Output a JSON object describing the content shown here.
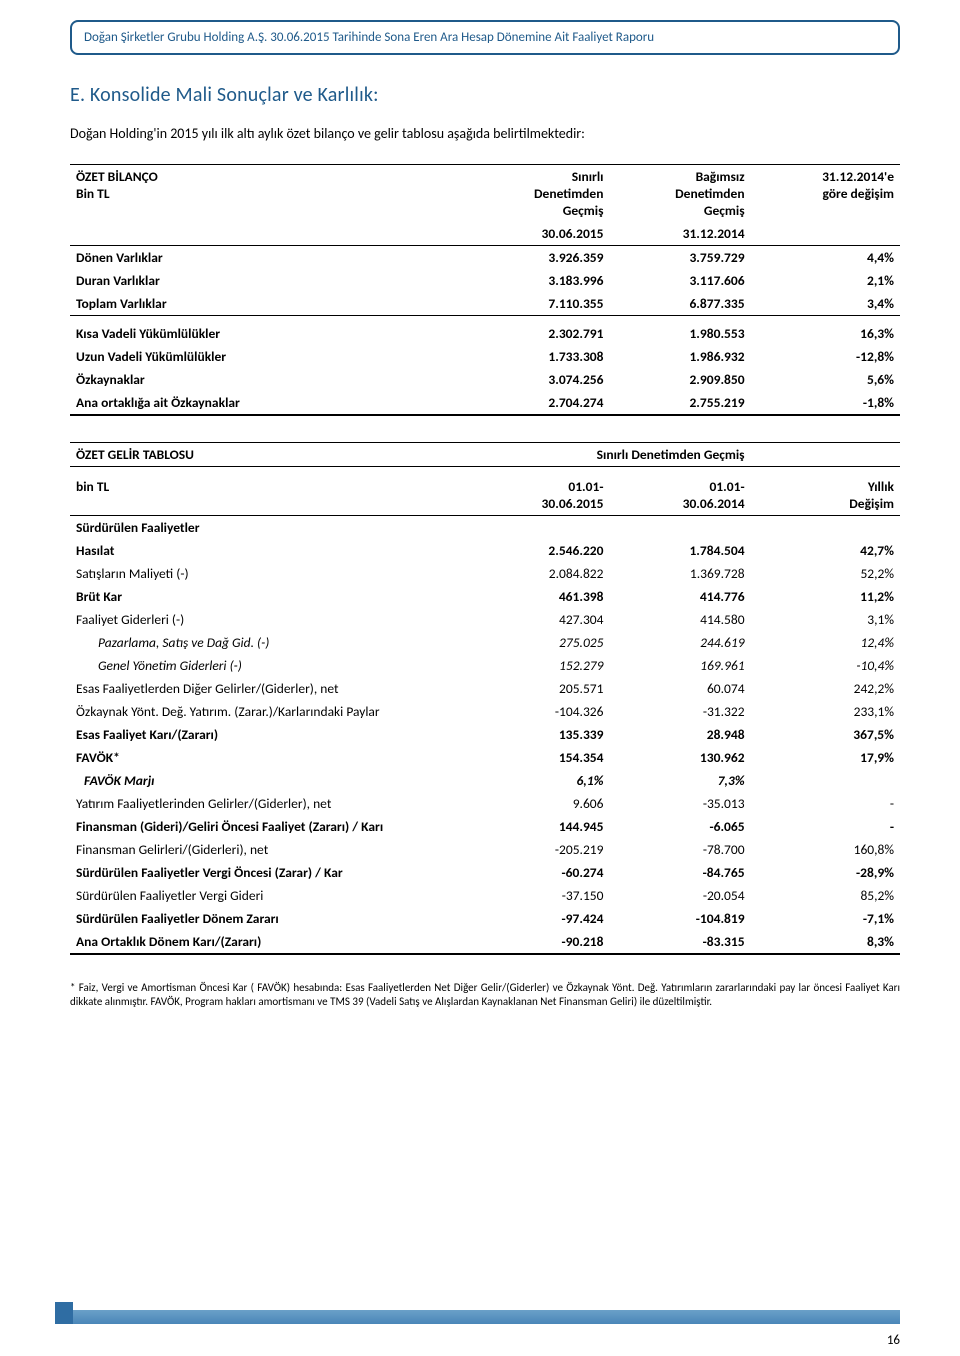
{
  "header": {
    "text": "Doğan Şirketler Grubu Holding A.Ş. 30.06.2015 Tarihinde Sona Eren Ara Hesap Dönemine Ait Faaliyet Raporu",
    "border_color": "#1f5a8a",
    "text_color": "#1f5a8a"
  },
  "section": {
    "title": "E. Konsolide Mali Sonuçlar ve Karlılık:",
    "intro": "Doğan Holding'in 2015 yılı ilk altı aylık özet bilanço ve gelir tablosu aşağıda belirtilmektedir:"
  },
  "balance_table": {
    "columns": {
      "label": "ÖZET BİLANÇO",
      "sublabel": "Bin TL",
      "col2_l1": "Sınırlı",
      "col2_l2": "Denetimden",
      "col2_l3": "Geçmiş",
      "col3_l1": "Bağımsız",
      "col3_l2": "Denetimden",
      "col3_l3": "Geçmiş",
      "col4_l1": "31.12.2014'e",
      "col4_l2": "göre değişim",
      "date_col2": "30.06.2015",
      "date_col3": "31.12.2014"
    },
    "rows": [
      {
        "label": "Dönen Varlıklar",
        "v1": "3.926.359",
        "v2": "3.759.729",
        "chg": "4,4%",
        "bold": true
      },
      {
        "label": "Duran Varlıklar",
        "v1": "3.183.996",
        "v2": "3.117.606",
        "chg": "2,1%",
        "bold": true
      },
      {
        "label": "Toplam Varlıklar",
        "v1": "7.110.355",
        "v2": "6.877.335",
        "chg": "3,4%",
        "bold": true
      },
      {
        "label": "Kısa Vadeli Yükümlülükler",
        "v1": "2.302.791",
        "v2": "1.980.553",
        "chg": "16,3%",
        "bold": true,
        "gap_above": true
      },
      {
        "label": "Uzun Vadeli Yükümlülükler",
        "v1": "1.733.308",
        "v2": "1.986.932",
        "chg": "-12,8%",
        "bold": true
      },
      {
        "label": "Özkaynaklar",
        "v1": "3.074.256",
        "v2": "2.909.850",
        "chg": "5,6%",
        "bold": true
      },
      {
        "label": "Ana ortaklığa ait Özkaynaklar",
        "v1": "2.704.274",
        "v2": "2.755.219",
        "chg": "-1,8%",
        "bold": true
      }
    ]
  },
  "income_table": {
    "header": {
      "label": "ÖZET GELİR TABLOSU",
      "right": "Sınırlı Denetimden Geçmiş"
    },
    "sub_header": {
      "label": "bin TL",
      "col2_l1": "01.01-",
      "col2_l2": "30.06.2015",
      "col3_l1": "01.01-",
      "col3_l2": "30.06.2014",
      "col4_l1": "Yıllık",
      "col4_l2": "Değişim"
    },
    "rows": [
      {
        "label": "Sürdürülen Faaliyetler",
        "v1": "",
        "v2": "",
        "chg": "",
        "bold": true
      },
      {
        "label": "Hasılat",
        "v1": "2.546.220",
        "v2": "1.784.504",
        "chg": "42,7%",
        "bold": true
      },
      {
        "label": "Satışların Maliyeti (-)",
        "v1": "2.084.822",
        "v2": "1.369.728",
        "chg": "52,2%",
        "bold": false
      },
      {
        "label": "Brüt Kar",
        "v1": "461.398",
        "v2": "414.776",
        "chg": "11,2%",
        "bold": true
      },
      {
        "label": "Faaliyet Giderleri (-)",
        "v1": "427.304",
        "v2": "414.580",
        "chg": "3,1%",
        "bold": false
      },
      {
        "label": "Pazarlama, Satış ve Dağ Gid. (-)",
        "v1": "275.025",
        "v2": "244.619",
        "chg": "12,4%",
        "bold": false,
        "italic": true,
        "indent": 1
      },
      {
        "label": "Genel Yönetim Giderleri (-)",
        "v1": "152.279",
        "v2": "169.961",
        "chg": "-10,4%",
        "bold": false,
        "italic": true,
        "indent": 1
      },
      {
        "label": "Esas Faaliyetlerden Diğer Gelirler/(Giderler), net",
        "v1": "205.571",
        "v2": "60.074",
        "chg": "242,2%",
        "bold": false
      },
      {
        "label": "Özkaynak Yönt. Değ. Yatırım. (Zarar.)/Karlarındaki Paylar",
        "v1": "-104.326",
        "v2": "-31.322",
        "chg": "233,1%",
        "bold": false
      },
      {
        "label": "Esas Faaliyet Karı/(Zararı)",
        "v1": "135.339",
        "v2": "28.948",
        "chg": "367,5%",
        "bold": true
      },
      {
        "label": "FAVÖK*",
        "v1": "154.354",
        "v2": "130.962",
        "chg": "17,9%",
        "bold": true
      },
      {
        "label": "FAVÖK Marjı",
        "v1": "6,1%",
        "v2": "7,3%",
        "chg": "",
        "bold": true,
        "italic": true,
        "indent": 2
      },
      {
        "label": "Yatırım Faaliyetlerinden Gelirler/(Giderler), net",
        "v1": "9.606",
        "v2": "-35.013",
        "chg": "-",
        "bold": false
      },
      {
        "label": "Finansman (Gideri)/Geliri Öncesi Faaliyet (Zararı) / Karı",
        "v1": "144.945",
        "v2": "-6.065",
        "chg": "-",
        "bold": true
      },
      {
        "label": "Finansman Gelirleri/(Giderleri), net",
        "v1": "-205.219",
        "v2": "-78.700",
        "chg": "160,8%",
        "bold": false
      },
      {
        "label": "Sürdürülen Faaliyetler Vergi Öncesi (Zarar) / Kar",
        "v1": "-60.274",
        "v2": "-84.765",
        "chg": "-28,9%",
        "bold": true
      },
      {
        "label": "Sürdürülen Faaliyetler Vergi Gideri",
        "v1": "-37.150",
        "v2": "-20.054",
        "chg": "85,2%",
        "bold": false
      },
      {
        "label": "Sürdürülen Faaliyetler Dönem Zararı",
        "v1": "-97.424",
        "v2": "-104.819",
        "chg": "-7,1%",
        "bold": true
      },
      {
        "label": "Ana Ortaklık Dönem Karı/(Zararı)",
        "v1": "-90.218",
        "v2": "-83.315",
        "chg": "8,3%",
        "bold": true
      }
    ]
  },
  "footnote": "* Faiz, Vergi ve Amortisman Öncesi Kar ( FAVÖK) hesabında: Esas Faaliyetlerden Net Diğer Gelir/(Giderler) ve  Özkaynak Yönt. Değ. Yatırımların zararlarındaki pay lar öncesi Faaliyet Karı dikkate alınmıştır. FAVÖK, Program hakları amortismanı ve TMS 39 (Vadeli Satış ve Alışlardan Kaynaklanan Net Finansman Geliri) ile düzeltilmiştir.",
  "page_number": "16",
  "styling": {
    "accent_color": "#1f5a8a",
    "footer_gradient_top": "#6aa0c8",
    "footer_gradient_bottom": "#4a86b8",
    "background": "#ffffff",
    "font_family": "Calibri",
    "body_font_size": 14,
    "table_font_size": 13.5,
    "footnote_font_size": 11
  }
}
